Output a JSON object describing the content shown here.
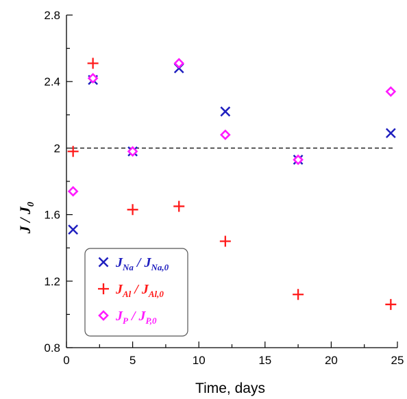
{
  "chart_data": {
    "type": "scatter",
    "xlabel": "Time, days",
    "ylabel": "J / J",
    "ylabel_sub": "0",
    "xlim": [
      0,
      25
    ],
    "ylim": [
      0.8,
      2.8
    ],
    "xticks": [
      "0",
      "5",
      "10",
      "15",
      "20",
      "25"
    ],
    "yticks": [
      "0.8",
      "1.2",
      "1.6",
      "2",
      "2.4",
      "2.8"
    ],
    "grid": false,
    "legend_position": "bottom-left",
    "reference_line": {
      "y": 2,
      "style": "dashed"
    },
    "series": [
      {
        "name": "J_Na / J_Na,0",
        "legend": {
          "a": "J",
          "a_sub": "Na",
          "sep": " / ",
          "b": "J",
          "b_sub": "Na,0"
        },
        "marker": "x",
        "color": "#1f1fbf",
        "x": [
          0.5,
          2,
          5,
          8.5,
          12,
          17.5,
          24.5
        ],
        "y": [
          1.51,
          2.41,
          1.98,
          2.48,
          2.22,
          1.93,
          2.09
        ]
      },
      {
        "name": "J_Al / J_Al,0",
        "legend": {
          "a": "J",
          "a_sub": "Al",
          "sep": " / ",
          "b": "J",
          "b_sub": "Al,0"
        },
        "marker": "plus",
        "color": "#ff1a1a",
        "x": [
          0.5,
          2,
          5,
          8.5,
          12,
          17.5,
          24.5
        ],
        "y": [
          1.98,
          2.51,
          1.63,
          1.65,
          1.44,
          1.12,
          1.06
        ]
      },
      {
        "name": "J_P / J_P,0",
        "legend": {
          "a": "J",
          "a_sub": "P",
          "sep": " / ",
          "b": "J",
          "b_sub": "P,0"
        },
        "marker": "diamond",
        "color": "#ff1aff",
        "x": [
          0.5,
          2,
          5,
          8.5,
          12,
          17.5,
          24.5
        ],
        "y": [
          1.74,
          2.42,
          1.98,
          2.51,
          2.08,
          1.93,
          2.34
        ]
      }
    ]
  }
}
